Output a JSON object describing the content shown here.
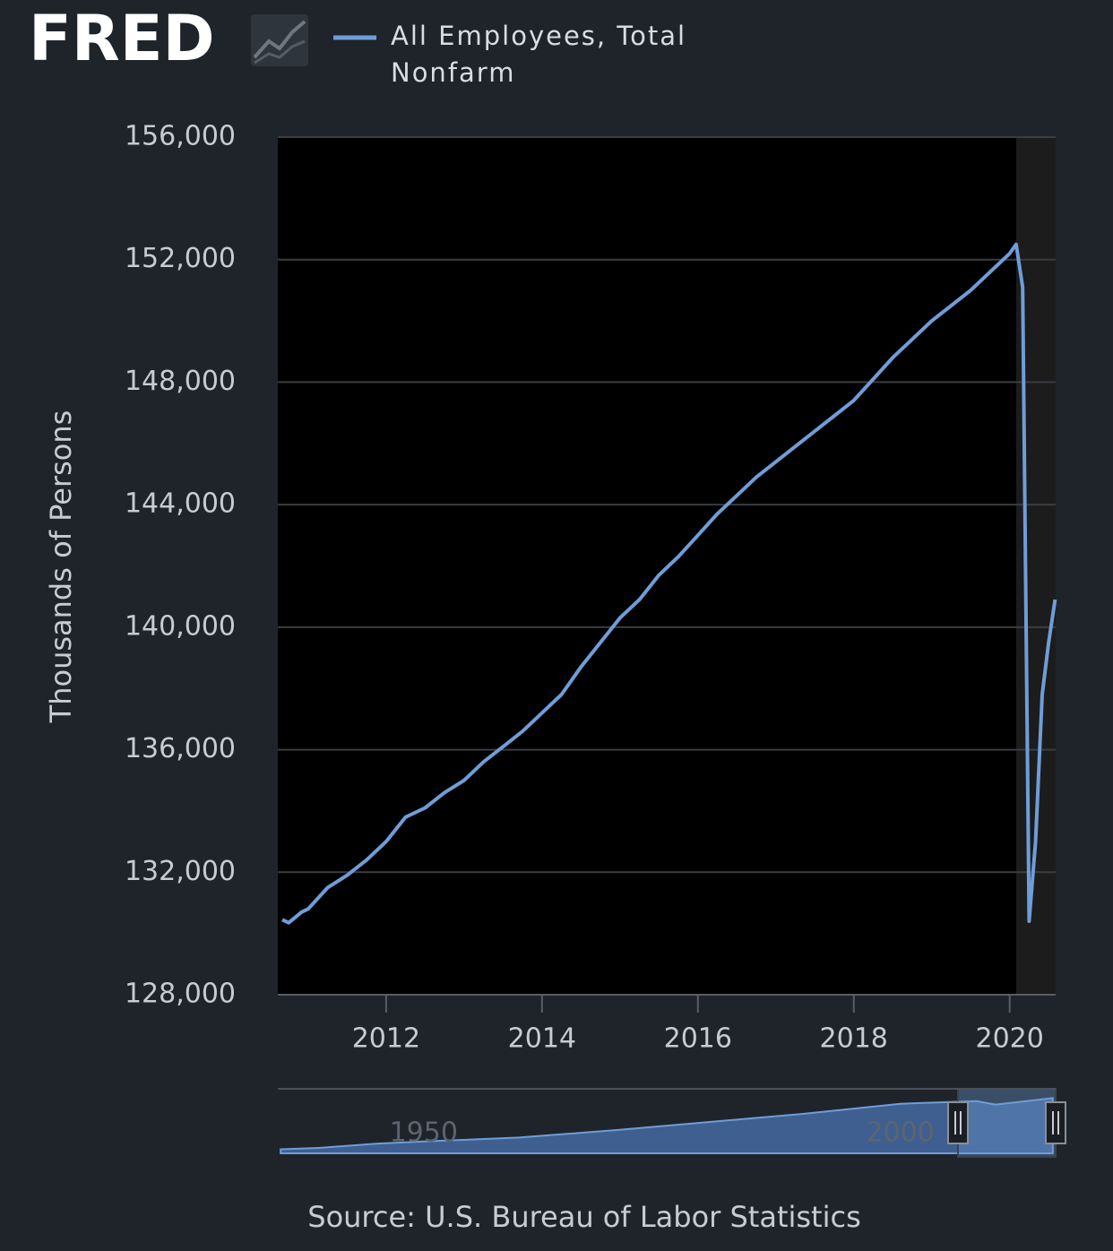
{
  "chart_data": {
    "type": "line",
    "logo": "FRED",
    "y_label": "Thousands of Persons",
    "source": "Source: U.S. Bureau of Labor Statistics",
    "x": [
      2010.667,
      2010.75,
      2010.917,
      2011.0,
      2011.25,
      2011.5,
      2011.75,
      2012.0,
      2012.25,
      2012.5,
      2012.75,
      2013.0,
      2013.25,
      2013.5,
      2013.75,
      2014.0,
      2014.25,
      2014.5,
      2014.75,
      2015.0,
      2015.25,
      2015.5,
      2015.75,
      2016.0,
      2016.25,
      2016.5,
      2016.75,
      2017.0,
      2017.25,
      2017.5,
      2017.75,
      2018.0,
      2018.25,
      2018.5,
      2018.75,
      2019.0,
      2019.25,
      2019.5,
      2019.75,
      2020.0,
      2020.083,
      2020.167,
      2020.25,
      2020.333,
      2020.417,
      2020.5,
      2020.583
    ],
    "series": [
      {
        "name": "All Employees, Total Nonfarm",
        "color": "#6f9dd8",
        "values": [
          130450,
          130350,
          130700,
          130800,
          131500,
          131900,
          132400,
          133000,
          133800,
          134100,
          134600,
          135000,
          135600,
          136100,
          136600,
          137200,
          137800,
          138700,
          139500,
          140300,
          140900,
          141700,
          142300,
          143000,
          143700,
          144300,
          144900,
          145400,
          145900,
          146400,
          146900,
          147400,
          148100,
          148800,
          149400,
          150000,
          150500,
          151000,
          151600,
          152200,
          152500,
          151100,
          130400,
          133000,
          137800,
          139500,
          140900
        ]
      }
    ],
    "xlim": [
      2010.61,
      2020.59
    ],
    "xticks": [
      2012,
      2014,
      2016,
      2018,
      2020
    ],
    "ylim": [
      128000,
      156000
    ],
    "yticks": [
      {
        "value": 128000,
        "label": "128,000"
      },
      {
        "value": 132000,
        "label": "132,000"
      },
      {
        "value": 136000,
        "label": "136,000"
      },
      {
        "value": 140000,
        "label": "140,000"
      },
      {
        "value": 144000,
        "label": "144,000"
      },
      {
        "value": 148000,
        "label": "148,000"
      },
      {
        "value": 152000,
        "label": "152,000"
      },
      {
        "value": 156000,
        "label": "156,000"
      }
    ],
    "grid": true,
    "shaded": [
      [
        2020.083,
        2020.59
      ]
    ],
    "navigator": {
      "x": [
        1935,
        1939,
        1945,
        1950,
        1960,
        1970,
        1980,
        1990,
        2000,
        2008,
        2010,
        2016
      ],
      "values": [
        27000,
        30000,
        40000,
        45000,
        54000,
        71000,
        90000,
        109000,
        132000,
        138000,
        130000,
        145000
      ],
      "xlim": [
        1934.7,
        2016.3
      ],
      "ylim": [
        17600,
        166500
      ],
      "xticks": [
        1950,
        2000
      ]
    }
  }
}
